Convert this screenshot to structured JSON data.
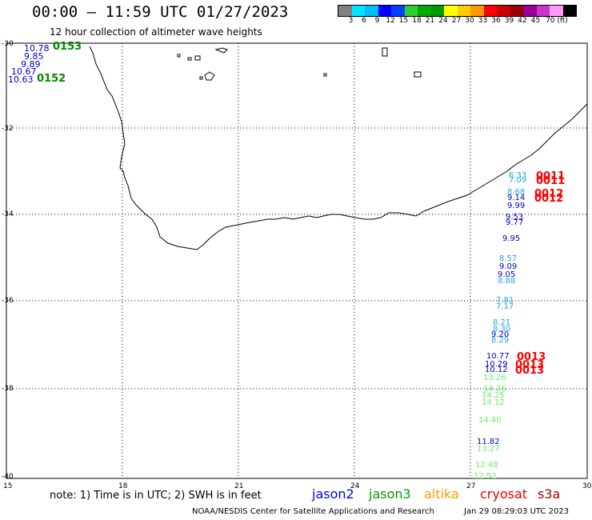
{
  "header": {
    "title": "00:00 – 11:59 UTC 01/27/2023",
    "subtitle": "12 hour collection of altimeter wave heights"
  },
  "colorbar": {
    "colors": [
      "#808080",
      "#00e5ff",
      "#00bfff",
      "#0000ff",
      "#0040ff",
      "#33cc33",
      "#00aa00",
      "#009900",
      "#ffff00",
      "#ffcc00",
      "#ff9900",
      "#ff0000",
      "#cc0000",
      "#990000",
      "#990099",
      "#cc33cc",
      "#ff99ff",
      "#000000"
    ],
    "ticks": [
      "3",
      "6",
      "9",
      "12",
      "15",
      "18",
      "21",
      "24",
      "27",
      "30",
      "33",
      "36",
      "39",
      "42",
      "45",
      "70 (ft)"
    ]
  },
  "axes": {
    "lon_labels": [
      "15",
      "18",
      "21",
      "24",
      "27",
      "30"
    ],
    "lat_labels": [
      "-30",
      "-32",
      "-34",
      "-36",
      "-38",
      "-40"
    ]
  },
  "observations": {
    "west_cluster": [
      {
        "text": "10.78",
        "color": "#0000cc"
      },
      {
        "text": "9.85",
        "color": "#0000cc"
      },
      {
        "text": "9.89",
        "color": "#0000cc"
      },
      {
        "text": "10.67",
        "color": "#0000cc"
      },
      {
        "text": "10.63",
        "color": "#0000cc"
      }
    ],
    "west_times": [
      {
        "text": "0153",
        "color": "#008800"
      },
      {
        "text": "0152",
        "color": "#008800"
      }
    ],
    "east_track": [
      {
        "text": "6.33",
        "color": "#1ba9e0"
      },
      {
        "text": "7.09",
        "color": "#1ba9e0"
      },
      {
        "text": "8.68",
        "color": "#1ba9e0"
      },
      {
        "text": "9.14",
        "color": "#0000cc"
      },
      {
        "text": "9.99",
        "color": "#0000cc"
      },
      {
        "text": "9.53",
        "color": "#0000cc"
      },
      {
        "text": "9.77",
        "color": "#0000cc"
      },
      {
        "text": "9.95",
        "color": "#0000cc"
      },
      {
        "text": "8.57",
        "color": "#1ba9e0"
      },
      {
        "text": "9.09",
        "color": "#0000cc"
      },
      {
        "text": "9.05",
        "color": "#0000cc"
      },
      {
        "text": "8.88",
        "color": "#1ba9e0"
      },
      {
        "text": "7.81",
        "color": "#1ba9e0"
      },
      {
        "text": "7.17",
        "color": "#1ba9e0"
      },
      {
        "text": "8.21",
        "color": "#1ba9e0"
      },
      {
        "text": "8.30",
        "color": "#1ba9e0"
      },
      {
        "text": "9.20",
        "color": "#0000cc"
      },
      {
        "text": "8.29",
        "color": "#1ba9e0"
      },
      {
        "text": "10.77",
        "color": "#0000cc"
      },
      {
        "text": "10.29",
        "color": "#0000cc"
      },
      {
        "text": "10.12",
        "color": "#0000cc"
      },
      {
        "text": "13.26",
        "color": "#66ee66"
      },
      {
        "text": "14.26",
        "color": "#66ee66"
      },
      {
        "text": "14.25",
        "color": "#66ee66"
      },
      {
        "text": "14.12",
        "color": "#66ee66"
      },
      {
        "text": "14.40",
        "color": "#66ee66"
      },
      {
        "text": "11.82",
        "color": "#0000cc"
      },
      {
        "text": "13.27",
        "color": "#66ee66"
      },
      {
        "text": "12.48",
        "color": "#66ee66"
      },
      {
        "text": "12.52",
        "color": "#66ee66"
      }
    ],
    "east_times": [
      {
        "text": "0011",
        "color": "#ff0000"
      },
      {
        "text": "0011",
        "color": "#ff0000"
      },
      {
        "text": "0012",
        "color": "#ff0000"
      },
      {
        "text": "0012",
        "color": "#ff0000"
      },
      {
        "text": "0013",
        "color": "#ff0000"
      },
      {
        "text": "0013",
        "color": "#ff0000"
      },
      {
        "text": "0013",
        "color": "#ff0000"
      }
    ]
  },
  "note": "note:  1) Time is in UTC;  2) SWH is in feet",
  "legend": [
    {
      "label": "jason2",
      "color": "#0000ee"
    },
    {
      "label": "jason3",
      "color": "#009900"
    },
    {
      "label": "altika",
      "color": "#ff9900"
    },
    {
      "label": "cryosat",
      "color": "#ee0000"
    },
    {
      "label": "s3a",
      "color": "#aa0000"
    }
  ],
  "footer": {
    "left": "NOAA/NESDIS Center for Satellite Applications and Research",
    "right": "Jan 29 08:29:03 UTC 2023"
  }
}
